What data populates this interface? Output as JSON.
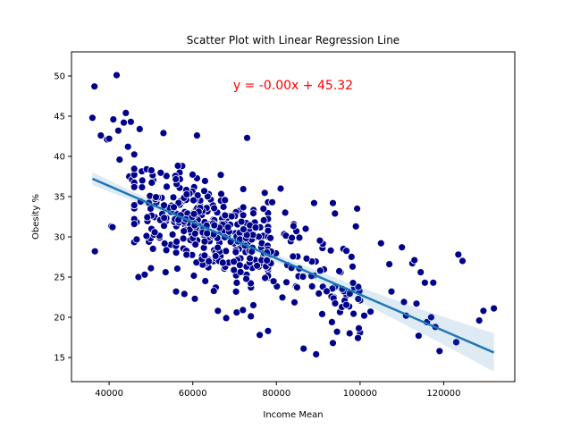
{
  "chart_data": {
    "type": "scatter",
    "title": "Scatter Plot with Linear Regression Line",
    "xlabel": "Income Mean",
    "ylabel": "Obesity %",
    "xlim": [
      31000,
      137000
    ],
    "ylim": [
      12,
      53
    ],
    "xticks": [
      40000,
      60000,
      80000,
      100000,
      120000
    ],
    "yticks": [
      15,
      20,
      25,
      30,
      35,
      40,
      45,
      50
    ],
    "grid": false,
    "annotation": {
      "text": "y = -0.00x + 45.32",
      "color": "#ff0000"
    },
    "colors": {
      "points": "#00008b",
      "point_edge": "#ffffff",
      "line": "#1f77b4",
      "band": "#1f77b4"
    },
    "regression": {
      "slope": -0.000225,
      "intercept": 45.32,
      "x_range": [
        36000,
        132000
      ],
      "ci_halfwidth": 0.9
    },
    "outliers": [
      [
        36000,
        44.8
      ],
      [
        36500,
        48.7
      ],
      [
        41800,
        50.1
      ],
      [
        36600,
        28.2
      ],
      [
        38000,
        42.6
      ],
      [
        39500,
        42.1
      ],
      [
        40000,
        42.2
      ],
      [
        41000,
        44.6
      ],
      [
        42200,
        43.2
      ],
      [
        43500,
        44.2
      ],
      [
        44000,
        45.4
      ],
      [
        45200,
        44.3
      ],
      [
        47300,
        43.4
      ],
      [
        53000,
        42.9
      ],
      [
        61000,
        42.6
      ],
      [
        73000,
        42.3
      ],
      [
        44500,
        41.2
      ],
      [
        40500,
        31.3
      ],
      [
        40800,
        31.2
      ],
      [
        42500,
        39.6
      ],
      [
        44800,
        37.5
      ],
      [
        45500,
        37.1
      ],
      [
        47000,
        25.0
      ],
      [
        48500,
        25.3
      ],
      [
        50000,
        26.1
      ],
      [
        78000,
        34.3
      ],
      [
        79000,
        34.3
      ],
      [
        81000,
        36.0
      ],
      [
        89000,
        34.2
      ],
      [
        93500,
        34.2
      ],
      [
        94000,
        32.9
      ],
      [
        87000,
        31.0
      ],
      [
        99000,
        31.3
      ],
      [
        85500,
        29.9
      ],
      [
        91000,
        28.6
      ],
      [
        93000,
        28.3
      ],
      [
        96000,
        28.5
      ],
      [
        76000,
        17.8
      ],
      [
        78000,
        18.3
      ],
      [
        86500,
        16.1
      ],
      [
        89500,
        15.4
      ],
      [
        93500,
        16.8
      ],
      [
        94500,
        18.2
      ],
      [
        97500,
        18.0
      ],
      [
        100000,
        18.1
      ],
      [
        96000,
        23.2
      ],
      [
        101000,
        20.2
      ],
      [
        102500,
        20.7
      ],
      [
        100000,
        22.1
      ],
      [
        105000,
        29.2
      ],
      [
        107000,
        26.6
      ],
      [
        107500,
        23.2
      ],
      [
        110000,
        28.7
      ],
      [
        110500,
        21.9
      ],
      [
        111000,
        20.2
      ],
      [
        112500,
        26.7
      ],
      [
        113000,
        27.1
      ],
      [
        113500,
        21.7
      ],
      [
        114000,
        17.7
      ],
      [
        114500,
        25.6
      ],
      [
        115500,
        24.3
      ],
      [
        116000,
        19.4
      ],
      [
        117000,
        20.0
      ],
      [
        117500,
        24.3
      ],
      [
        118000,
        18.8
      ],
      [
        119000,
        15.8
      ],
      [
        123000,
        16.9
      ],
      [
        123500,
        27.8
      ],
      [
        124500,
        27.0
      ],
      [
        128500,
        19.6
      ],
      [
        129500,
        20.8
      ],
      [
        132000,
        21.1
      ],
      [
        56000,
        23.2
      ],
      [
        58000,
        22.9
      ],
      [
        60500,
        22.3
      ],
      [
        66000,
        20.8
      ],
      [
        68000,
        19.9
      ],
      [
        70500,
        20.6
      ],
      [
        72000,
        20.9
      ],
      [
        74500,
        21.5
      ],
      [
        63000,
        24.5
      ],
      [
        65500,
        23.7
      ],
      [
        62000,
        27.2
      ],
      [
        53500,
        25.6
      ]
    ],
    "cluster": {
      "count": 330,
      "seed": 42,
      "x_mean": 63000,
      "x_sd": 9500,
      "y_sd": 3.2
    },
    "tail": {
      "count": 90,
      "seed": 7,
      "x_min": 72000,
      "x_max": 100000,
      "y_sd": 2.8
    }
  }
}
